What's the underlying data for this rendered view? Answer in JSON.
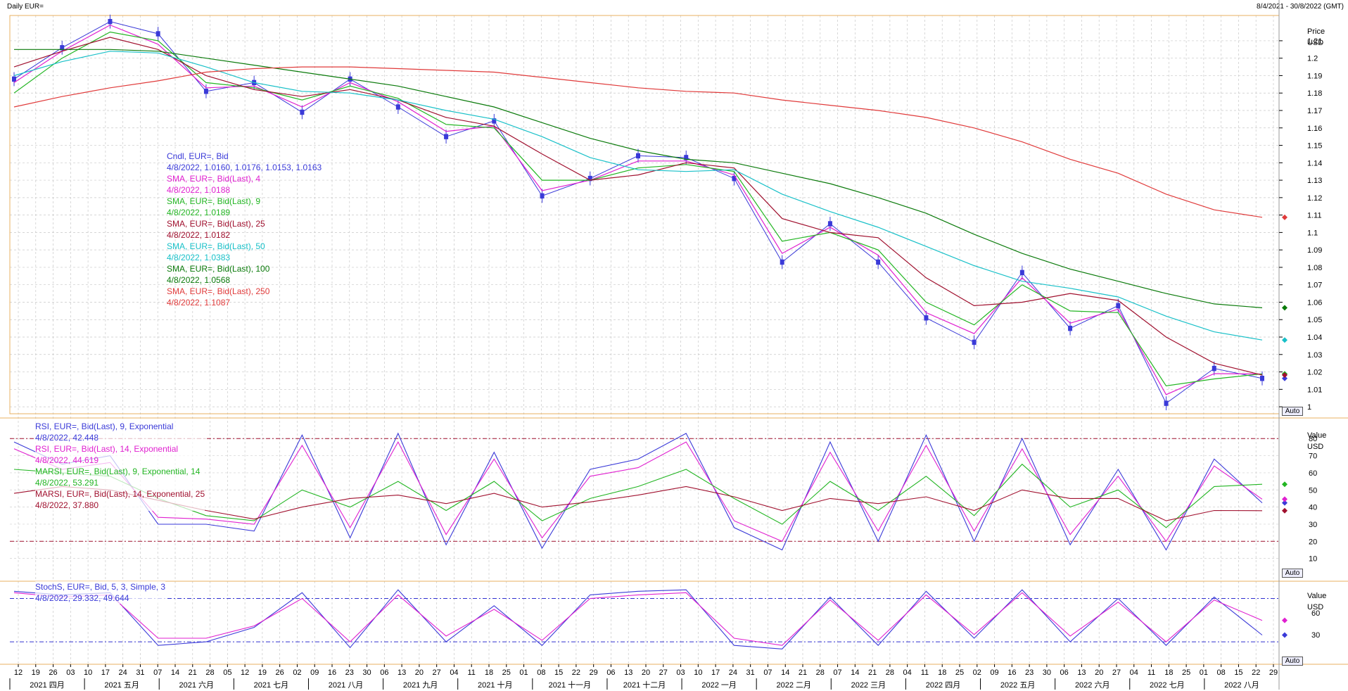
{
  "window": {
    "title": "Daily EUR=",
    "range": "8/4/2021 - 30/8/2022 (GMT)"
  },
  "auto_label": "Auto",
  "panels": {
    "price": {
      "axis_title": "Price",
      "axis_unit": "USD",
      "ticks": [
        "1.21",
        "1.2",
        "1.19",
        "1.18",
        "1.17",
        "1.16",
        "1.15",
        "1.14",
        "1.13",
        "1.12",
        "1.11",
        "1.1",
        "1.09",
        "1.08",
        "1.07",
        "1.06",
        "1.05",
        "1.04",
        "1.03",
        "1.02",
        "1.01",
        "1"
      ],
      "legend": [
        {
          "line1": "Cndl, EUR=, Bid",
          "line2": "4/8/2022, 1.0160, 1.0176, 1.0153, 1.0163",
          "color": "#3a3ad8"
        },
        {
          "line1": "SMA, EUR=, Bid(Last), 4",
          "line2": "4/8/2022, 1.0188",
          "color": "#e020d0"
        },
        {
          "line1": "SMA, EUR=, Bid(Last), 9",
          "line2": "4/8/2022, 1.0189",
          "color": "#22b522"
        },
        {
          "line1": "SMA, EUR=, Bid(Last), 25",
          "line2": "4/8/2022, 1.0182",
          "color": "#a0102e"
        },
        {
          "line1": "SMA, EUR=, Bid(Last), 50",
          "line2": "4/8/2022, 1.0383",
          "color": "#18c0c8"
        },
        {
          "line1": "SMA, EUR=, Bid(Last), 100",
          "line2": "4/8/2022, 1.0568",
          "color": "#0a7a0a"
        },
        {
          "line1": "SMA, EUR=, Bid(Last), 250",
          "line2": "4/8/2022, 1.1087",
          "color": "#e03a3a"
        }
      ]
    },
    "rsi": {
      "axis_title": "Value",
      "axis_unit": "USD",
      "ticks": [
        "80",
        "70",
        "60",
        "50",
        "40",
        "30",
        "20",
        "10"
      ],
      "legend": [
        {
          "line1": "RSI, EUR=, Bid(Last), 9, Exponential",
          "line2": "4/8/2022, 42.448",
          "color": "#3a3ad8"
        },
        {
          "line1": "RSI, EUR=, Bid(Last), 14, Exponential",
          "line2": "4/8/2022, 44.619",
          "color": "#e020d0"
        },
        {
          "line1": "MARSI, EUR=, Bid(Last), 9, Exponential, 14",
          "line2": "4/8/2022, 53.291",
          "color": "#22b522"
        },
        {
          "line1": "MARSI, EUR=, Bid(Last), 14, Exponential, 25",
          "line2": "4/8/2022, 37.880",
          "color": "#a0102e"
        }
      ]
    },
    "stoch": {
      "axis_title": "Value",
      "axis_unit": "USD",
      "ticks": [
        "60",
        "30"
      ],
      "legend": [
        {
          "line1": "StochS, EUR=, Bid, 5, 3, Simple, 3",
          "line2": "4/8/2022, 29.332, 49.644",
          "color": "#3a3ad8"
        }
      ]
    }
  },
  "x_axis": {
    "days": [
      "12",
      "19",
      "26",
      "03",
      "10",
      "17",
      "24",
      "31",
      "07",
      "14",
      "21",
      "28",
      "05",
      "12",
      "19",
      "26",
      "02",
      "09",
      "16",
      "23",
      "30",
      "06",
      "13",
      "20",
      "27",
      "04",
      "11",
      "18",
      "25",
      "01",
      "08",
      "15",
      "22",
      "29",
      "06",
      "13",
      "20",
      "27",
      "03",
      "10",
      "17",
      "24",
      "31",
      "07",
      "14",
      "21",
      "28",
      "07",
      "14",
      "21",
      "28",
      "04",
      "11",
      "18",
      "25",
      "02",
      "09",
      "16",
      "23",
      "30",
      "06",
      "13",
      "20",
      "27",
      "04",
      "11",
      "18",
      "25",
      "01",
      "08",
      "15",
      "22",
      "29"
    ],
    "months": [
      "2021 四月",
      "2021 五月",
      "2021 六月",
      "2021 七月",
      "2021 八月",
      "2021 九月",
      "2021 十月",
      "2021 十一月",
      "2021 十二月",
      "2022 一月",
      "2022 二月",
      "2022 三月",
      "2022 四月",
      "2022 五月",
      "2022 六月",
      "2022 七月",
      "2022 八月"
    ]
  },
  "chart_data": [
    {
      "type": "line",
      "title": "Daily EUR=",
      "ylabel": "Price",
      "ylim": [
        0.996,
        1.2245
      ],
      "x": [
        "2021-04-08",
        "2021-05-05",
        "2021-05-25",
        "2021-06-15",
        "2021-07-07",
        "2021-07-28",
        "2021-08-20",
        "2021-09-03",
        "2021-09-23",
        "2021-10-12",
        "2021-10-28",
        "2021-11-24",
        "2021-12-20",
        "2022-01-14",
        "2022-02-03",
        "2022-02-11",
        "2022-03-07",
        "2022-03-31",
        "2022-04-14",
        "2022-04-28",
        "2022-05-12",
        "2022-05-30",
        "2022-06-14",
        "2022-06-27",
        "2022-07-14",
        "2022-07-28",
        "2022-08-04"
      ],
      "series": [
        {
          "name": "Cndl, EUR=, Bid",
          "values": [
            1.188,
            1.206,
            1.221,
            1.214,
            1.181,
            1.186,
            1.169,
            1.188,
            1.172,
            1.155,
            1.164,
            1.121,
            1.131,
            1.144,
            1.143,
            1.131,
            1.083,
            1.105,
            1.083,
            1.051,
            1.037,
            1.077,
            1.045,
            1.058,
            1.002,
            1.022,
            1.0163
          ]
        },
        {
          "name": "SMA, EUR=, Bid(Last), 4",
          "values": [
            1.186,
            1.204,
            1.219,
            1.208,
            1.183,
            1.184,
            1.172,
            1.186,
            1.175,
            1.158,
            1.161,
            1.124,
            1.13,
            1.141,
            1.141,
            1.133,
            1.088,
            1.103,
            1.087,
            1.054,
            1.042,
            1.074,
            1.048,
            1.056,
            1.007,
            1.019,
            1.0188
          ]
        },
        {
          "name": "SMA, EUR=, Bid(Last), 9",
          "values": [
            1.18,
            1.2,
            1.215,
            1.21,
            1.186,
            1.183,
            1.176,
            1.184,
            1.177,
            1.162,
            1.16,
            1.13,
            1.13,
            1.137,
            1.139,
            1.135,
            1.095,
            1.1,
            1.09,
            1.06,
            1.047,
            1.07,
            1.055,
            1.054,
            1.012,
            1.016,
            1.0189
          ]
        },
        {
          "name": "SMA, EUR=, Bid(Last), 25",
          "values": [
            1.195,
            1.204,
            1.212,
            1.205,
            1.19,
            1.182,
            1.178,
            1.182,
            1.176,
            1.166,
            1.161,
            1.145,
            1.13,
            1.133,
            1.14,
            1.137,
            1.108,
            1.1,
            1.097,
            1.074,
            1.058,
            1.06,
            1.065,
            1.061,
            1.04,
            1.025,
            1.0182
          ]
        },
        {
          "name": "SMA, EUR=, Bid(Last), 50",
          "values": [
            1.19,
            1.198,
            1.204,
            1.203,
            1.195,
            1.186,
            1.181,
            1.18,
            1.176,
            1.17,
            1.165,
            1.155,
            1.143,
            1.136,
            1.135,
            1.136,
            1.122,
            1.112,
            1.103,
            1.092,
            1.081,
            1.072,
            1.068,
            1.063,
            1.052,
            1.043,
            1.0383
          ]
        },
        {
          "name": "SMA, EUR=, Bid(Last), 100",
          "values": [
            1.205,
            1.205,
            1.205,
            1.204,
            1.2,
            1.196,
            1.192,
            1.188,
            1.184,
            1.178,
            1.172,
            1.163,
            1.154,
            1.147,
            1.142,
            1.14,
            1.134,
            1.128,
            1.12,
            1.111,
            1.099,
            1.088,
            1.079,
            1.072,
            1.065,
            1.059,
            1.0568
          ]
        },
        {
          "name": "SMA, EUR=, Bid(Last), 250",
          "values": [
            1.172,
            1.178,
            1.183,
            1.187,
            1.192,
            1.194,
            1.195,
            1.195,
            1.194,
            1.193,
            1.192,
            1.189,
            1.186,
            1.183,
            1.181,
            1.18,
            1.176,
            1.173,
            1.17,
            1.166,
            1.16,
            1.152,
            1.142,
            1.134,
            1.122,
            1.113,
            1.1087
          ]
        }
      ]
    },
    {
      "type": "line",
      "ylabel": "Value",
      "ylim": [
        0,
        90
      ],
      "bands": [
        20,
        80
      ],
      "series": [
        {
          "name": "RSI, EUR=, Bid(Last), 9, Exponential",
          "values": [
            78,
            65,
            70,
            30,
            30,
            26,
            82,
            22,
            83,
            18,
            72,
            16,
            62,
            68,
            83,
            28,
            15,
            78,
            20,
            82,
            20,
            80,
            18,
            62,
            15,
            68,
            42.448
          ]
        },
        {
          "name": "RSI, EUR=, Bid(Last), 14, Exponential",
          "values": [
            74,
            62,
            66,
            34,
            33,
            30,
            76,
            28,
            78,
            24,
            68,
            22,
            58,
            63,
            78,
            32,
            20,
            72,
            26,
            76,
            26,
            74,
            24,
            58,
            20,
            64,
            44.619
          ]
        },
        {
          "name": "MARSI, EUR=, Bid(Last), 9, Exponential, 14",
          "values": [
            62,
            60,
            58,
            45,
            35,
            32,
            50,
            40,
            55,
            38,
            55,
            32,
            45,
            52,
            62,
            45,
            30,
            55,
            38,
            58,
            35,
            65,
            40,
            50,
            28,
            52,
            53.291
          ]
        },
        {
          "name": "MARSI, EUR=, Bid(Last), 14, Exponential, 25",
          "values": [
            48,
            52,
            50,
            44,
            38,
            33,
            40,
            45,
            47,
            42,
            48,
            40,
            43,
            47,
            52,
            46,
            38,
            45,
            42,
            46,
            38,
            50,
            45,
            45,
            32,
            38,
            37.88
          ]
        }
      ]
    },
    {
      "type": "line",
      "ylabel": "Value",
      "ylim": [
        0,
        100
      ],
      "bands": [
        20,
        80
      ],
      "series": [
        {
          "name": "StochS %K",
          "values": [
            90,
            85,
            88,
            15,
            20,
            40,
            88,
            12,
            92,
            20,
            70,
            15,
            85,
            90,
            92,
            15,
            10,
            82,
            15,
            90,
            25,
            92,
            20,
            80,
            15,
            82,
            29.332
          ]
        },
        {
          "name": "StochS %D",
          "values": [
            88,
            82,
            85,
            25,
            25,
            42,
            80,
            20,
            85,
            28,
            65,
            22,
            80,
            85,
            88,
            25,
            15,
            78,
            22,
            85,
            30,
            88,
            28,
            75,
            20,
            78,
            49.644
          ]
        }
      ]
    }
  ]
}
